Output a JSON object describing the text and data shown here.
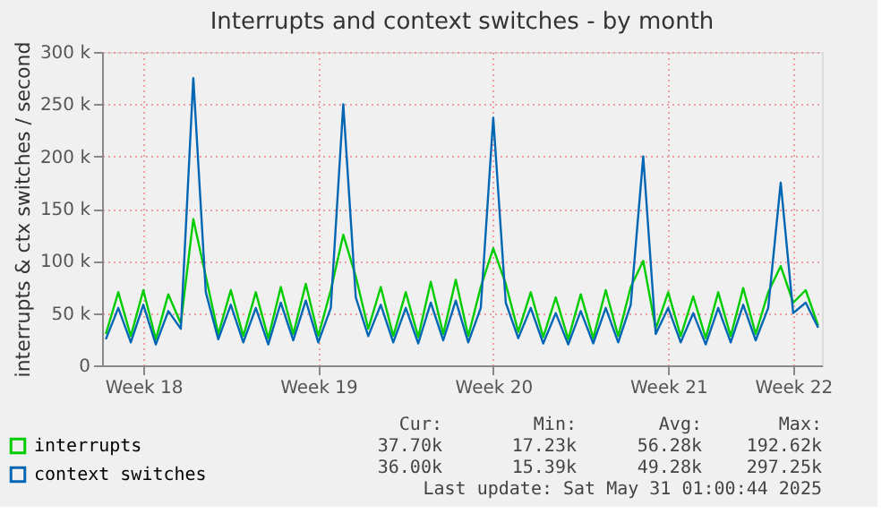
{
  "chart_data": {
    "type": "line",
    "title": "Interrupts and context switches - by month",
    "ylabel": "interrupts & ctx switches / second",
    "categories": [
      null,
      null,
      null,
      "Week 18",
      null,
      null,
      null,
      null,
      null,
      null,
      null,
      null,
      null,
      null,
      null,
      null,
      null,
      "Week 19",
      null,
      null,
      null,
      null,
      null,
      null,
      null,
      null,
      null,
      null,
      null,
      null,
      null,
      "Week 20",
      null,
      null,
      null,
      null,
      null,
      null,
      null,
      null,
      null,
      null,
      null,
      null,
      null,
      "Week 21",
      null,
      null,
      null,
      null,
      null,
      null,
      null,
      null,
      null,
      "Week 22",
      null,
      null
    ],
    "ylim": [
      0,
      300000
    ],
    "yticks": [
      {
        "value": 0,
        "label": "0"
      },
      {
        "value": 50000,
        "label": "50 k"
      },
      {
        "value": 100000,
        "label": "100 k"
      },
      {
        "value": 150000,
        "label": "150 k"
      },
      {
        "value": 200000,
        "label": "200 k"
      },
      {
        "value": 250000,
        "label": "250 k"
      },
      {
        "value": 300000,
        "label": "300 k"
      }
    ],
    "grid": true,
    "legend": "bottom left",
    "line_style": "solid",
    "marker": "none",
    "series": [
      {
        "name": "interrupts",
        "color": "#00cc00",
        "values": [
          30000,
          70000,
          28000,
          72000,
          25000,
          68000,
          40000,
          140000,
          85000,
          30000,
          72000,
          28000,
          70000,
          26000,
          75000,
          30000,
          78000,
          28000,
          72000,
          125000,
          85000,
          35000,
          75000,
          28000,
          70000,
          27000,
          80000,
          30000,
          82000,
          28000,
          75000,
          112000,
          78000,
          32000,
          70000,
          27000,
          65000,
          25000,
          68000,
          26000,
          72000,
          28000,
          75000,
          100000,
          35000,
          70000,
          28000,
          66000,
          26000,
          70000,
          28000,
          74000,
          30000,
          70000,
          95000,
          60000,
          72000,
          38000
        ]
      },
      {
        "name": "context switches",
        "color": "#0066b3",
        "values": [
          25000,
          55000,
          22000,
          58000,
          20000,
          52000,
          35000,
          275000,
          70000,
          25000,
          58000,
          22000,
          55000,
          20000,
          60000,
          24000,
          62000,
          22000,
          55000,
          250000,
          65000,
          28000,
          58000,
          22000,
          55000,
          21000,
          60000,
          24000,
          62000,
          22000,
          55000,
          237000,
          60000,
          26000,
          55000,
          21000,
          50000,
          20000,
          52000,
          21000,
          55000,
          22000,
          58000,
          200000,
          30000,
          55000,
          22000,
          50000,
          20000,
          55000,
          22000,
          58000,
          24000,
          55000,
          175000,
          50000,
          60000,
          36000
        ]
      }
    ],
    "annotations": [
      "Cur:",
      "Min:",
      "Avg:",
      "Max:",
      "37.70k",
      "17.23k",
      "56.28k",
      "192.62k",
      "36.00k",
      "15.39k",
      "49.28k",
      "297.25k",
      "Last update: Sat May 31 01:00:44 2025"
    ]
  }
}
